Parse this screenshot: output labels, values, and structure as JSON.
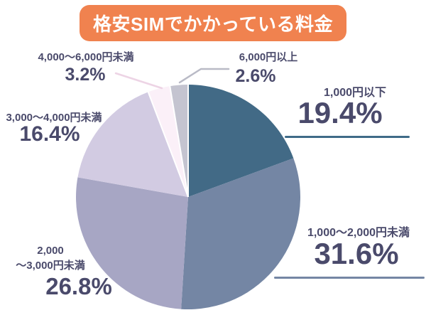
{
  "title_banner": {
    "text": "格安SIMでかかっている料金",
    "bg_color": "#F0824F",
    "text_color": "#FFFFFF"
  },
  "chart_data": {
    "type": "pie",
    "title": "格安SIMでかかっている料金",
    "start_angle": "top",
    "direction": "clockwise",
    "unit": "%",
    "slices": [
      {
        "label": "1,000円以下",
        "value": 19.4,
        "pct_label": "19.4%",
        "color": "#426A86"
      },
      {
        "label": "1,000〜2,000円未満",
        "value": 31.6,
        "pct_label": "31.6%",
        "color": "#7486A4"
      },
      {
        "label": "2,000〜3,000円未満",
        "label_display": "2,000\n〜3,000円未満",
        "value": 26.8,
        "pct_label": "26.8%",
        "color": "#A7A6C4"
      },
      {
        "label": "3,000〜4,000円未満",
        "value": 16.4,
        "pct_label": "16.4%",
        "color": "#D2CBE2"
      },
      {
        "label": "4,000〜6,000円未満",
        "value": 3.2,
        "pct_label": "3.2%",
        "color": "#FBF0F8"
      },
      {
        "label": "6,000円以上",
        "value": 2.6,
        "pct_label": "2.6%",
        "color": "#C4C4D0"
      }
    ]
  },
  "colors": {
    "label_text": "#4A4A6B",
    "underline_teal": "#3F6B88",
    "underline_blue": "#7486A4",
    "leader_pink": "#EDD4E5",
    "leader_gray": "#B9BAC6",
    "slice_separator": "#FFFFFF"
  }
}
